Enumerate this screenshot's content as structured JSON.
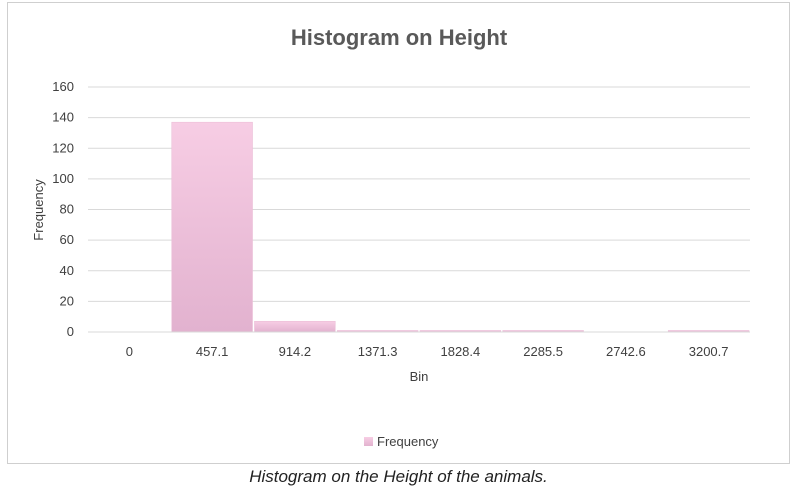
{
  "chart_data": {
    "type": "bar",
    "title": "Histogram on Height",
    "xlabel": "Bin",
    "ylabel": "Frequency",
    "categories": [
      "0",
      "457.1",
      "914.2",
      "1371.3",
      "1828.4",
      "2285.5",
      "2742.6",
      "3200.7"
    ],
    "series": [
      {
        "name": "Frequency",
        "values": [
          0,
          137,
          7,
          1,
          1,
          1,
          0,
          1
        ]
      }
    ],
    "ylim": [
      0,
      160
    ],
    "yticks": [
      0,
      20,
      40,
      60,
      80,
      100,
      120,
      140,
      160
    ],
    "grid": true,
    "legend_position": "bottom",
    "bar_color": "#f7cde4",
    "bar_color_dark": "#e2b2cf"
  },
  "caption": "Histogram on the Height of the animals."
}
